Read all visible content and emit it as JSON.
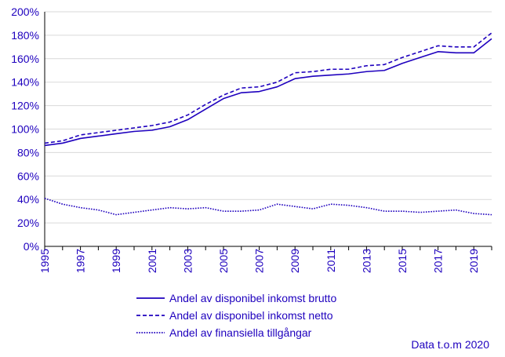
{
  "chart_data": {
    "type": "line",
    "title": "",
    "xlabel": "",
    "ylabel": "",
    "ylim": [
      0,
      200
    ],
    "y_ticks": [
      "0%",
      "20%",
      "40%",
      "60%",
      "80%",
      "100%",
      "120%",
      "140%",
      "160%",
      "180%",
      "200%"
    ],
    "y_tick_values": [
      0,
      20,
      40,
      60,
      80,
      100,
      120,
      140,
      160,
      180,
      200
    ],
    "x": [
      1995,
      1996,
      1997,
      1998,
      1999,
      2000,
      2001,
      2002,
      2003,
      2004,
      2005,
      2006,
      2007,
      2008,
      2009,
      2010,
      2011,
      2012,
      2013,
      2014,
      2015,
      2016,
      2017,
      2018,
      2019,
      2020
    ],
    "x_ticks": [
      "1995",
      "1997",
      "1999",
      "2001",
      "2003",
      "2005",
      "2007",
      "2009",
      "2011",
      "2013",
      "2015",
      "2017",
      "2019"
    ],
    "x_tick_values": [
      1995,
      1997,
      1999,
      2001,
      2003,
      2005,
      2007,
      2009,
      2011,
      2013,
      2015,
      2017,
      2019
    ],
    "grid": "horizontal",
    "legend_position": "bottom",
    "color": "#1e00be",
    "series": [
      {
        "name": "Andel av disponibel inkomst brutto",
        "style": "solid",
        "values": [
          86,
          88,
          92,
          94,
          96,
          98,
          99,
          102,
          108,
          117,
          126,
          131,
          132,
          136,
          143,
          145,
          146,
          147,
          149,
          150,
          156,
          161,
          166,
          165,
          165,
          177
        ]
      },
      {
        "name": "Andel av disponibel inkomst netto",
        "style": "dashed",
        "values": [
          88,
          90,
          95,
          97,
          99,
          101,
          103,
          106,
          112,
          121,
          129,
          135,
          136,
          140,
          148,
          149,
          151,
          151,
          154,
          155,
          161,
          166,
          171,
          170,
          170,
          182
        ]
      },
      {
        "name": "Andel av finansiella tillgångar",
        "style": "dotted",
        "values": [
          41,
          36,
          33,
          31,
          27,
          29,
          31,
          33,
          32,
          33,
          30,
          30,
          31,
          36,
          34,
          32,
          36,
          35,
          33,
          30,
          30,
          29,
          30,
          31,
          28,
          27
        ]
      }
    ],
    "note": "Data t.o.m 2020"
  }
}
